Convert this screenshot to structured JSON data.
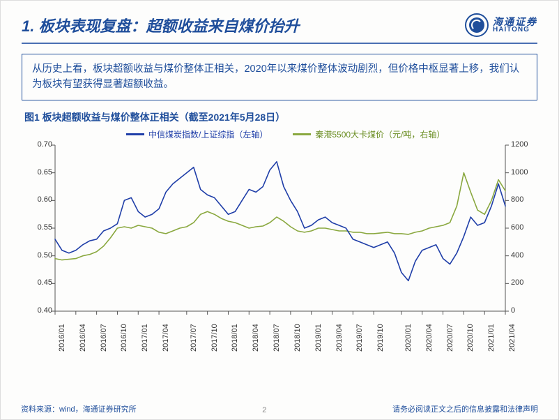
{
  "title": "1. 板块表现复盘：超额收益来自煤价抬升",
  "logo": {
    "cn": "海通证券",
    "en": "HAITONG"
  },
  "summary": "从历史上看，板块超额收益与煤价整体正相关，2020年以来煤价整体波动剧烈，但价格中枢显著上移，我们认为板块有望获得显著超额收益。",
  "chart": {
    "caption": "图1  板块超额收益与煤价整体正相关（截至2021年5月28日）",
    "type": "line-dual-axis",
    "series1": {
      "name": "中信煤炭指数/上证综指（左轴）",
      "color": "#1f3ea8",
      "line_width": 1.6,
      "data": [
        0.53,
        0.51,
        0.505,
        0.51,
        0.52,
        0.527,
        0.53,
        0.545,
        0.55,
        0.558,
        0.6,
        0.605,
        0.58,
        0.57,
        0.575,
        0.585,
        0.615,
        0.63,
        0.64,
        0.65,
        0.66,
        0.62,
        0.61,
        0.605,
        0.59,
        0.575,
        0.58,
        0.6,
        0.62,
        0.615,
        0.625,
        0.655,
        0.67,
        0.625,
        0.6,
        0.58,
        0.55,
        0.555,
        0.565,
        0.57,
        0.56,
        0.555,
        0.55,
        0.53,
        0.525,
        0.52,
        0.515,
        0.52,
        0.525,
        0.505,
        0.47,
        0.455,
        0.49,
        0.51,
        0.515,
        0.52,
        0.495,
        0.485,
        0.505,
        0.535,
        0.57,
        0.555,
        0.56,
        0.59,
        0.63,
        0.59
      ]
    },
    "series2": {
      "name": "秦港5500大卡煤价（元/吨，右轴）",
      "color": "#8aa83f",
      "line_width": 1.6,
      "data": [
        380,
        370,
        375,
        380,
        400,
        410,
        430,
        470,
        530,
        600,
        610,
        600,
        620,
        610,
        600,
        570,
        560,
        580,
        600,
        610,
        640,
        700,
        720,
        700,
        670,
        650,
        640,
        620,
        600,
        610,
        615,
        640,
        680,
        650,
        610,
        580,
        570,
        580,
        600,
        600,
        590,
        580,
        580,
        570,
        570,
        560,
        560,
        565,
        570,
        560,
        560,
        555,
        570,
        580,
        600,
        610,
        620,
        640,
        760,
        1000,
        860,
        730,
        700,
        800,
        950,
        870
      ]
    },
    "x_labels": [
      "2016/01",
      "2016/04",
      "2016/07",
      "2016/10",
      "2017/01",
      "2017/04",
      "2017/07",
      "2017/10",
      "2018/01",
      "2018/04",
      "2018/07",
      "2018/10",
      "2019/01",
      "2019/04",
      "2019/07",
      "2019/10",
      "2020/01",
      "2020/04",
      "2020/07",
      "2020/10",
      "2021/01",
      "2021/04"
    ],
    "y_left": {
      "min": 0.4,
      "max": 0.7,
      "ticks": [
        0.4,
        0.45,
        0.5,
        0.55,
        0.6,
        0.65,
        0.7
      ]
    },
    "y_right": {
      "min": 0,
      "max": 1200,
      "ticks": [
        0,
        200,
        400,
        600,
        800,
        1000,
        1200
      ]
    },
    "background_color": "#fdfdfc",
    "axis_color": "#555555",
    "tick_fontsize": 11,
    "legend_fontsize": 12
  },
  "footer": {
    "source": "资料来源：wind，海通证券研究所",
    "page": "2",
    "disclaimer": "请务必阅读正文之后的信息披露和法律声明"
  }
}
